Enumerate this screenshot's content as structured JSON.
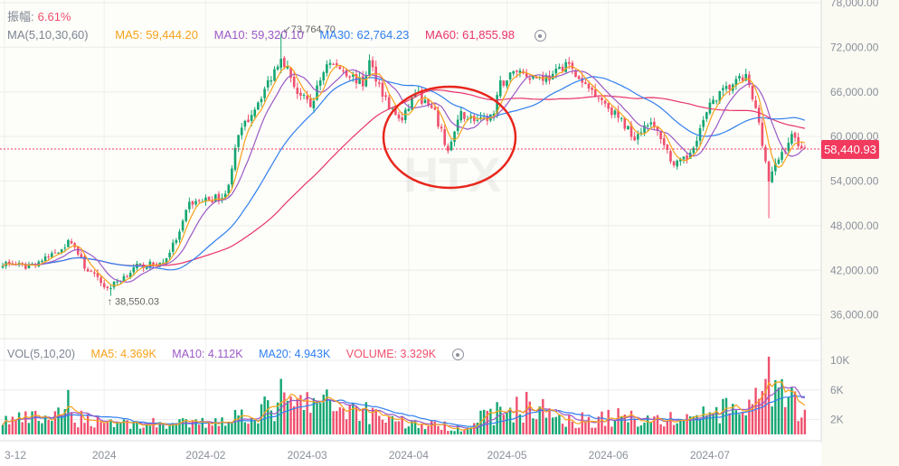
{
  "header": {
    "amplitude_label": "振幅:",
    "amplitude_value": "6.61%",
    "ma_title": "MA(5,10,30,60)",
    "ma5": "MA5: 59,444.20",
    "ma10": "MA10: 59,320.10",
    "ma30": "MA30: 62,764.23",
    "ma60": "MA60: 61,855.98"
  },
  "volume_header": {
    "title": "VOL(5,10,20)",
    "ma5": "MA5: 4.369K",
    "ma10": "MA10: 4.112K",
    "ma20": "MA20: 4.943K",
    "volume": "VOLUME: 3.329K"
  },
  "current_price": "58,440.93",
  "watermark": "HTX",
  "colors": {
    "up": "#13a672",
    "down": "#f0506e",
    "ma5": "#f7a21b",
    "ma10": "#9b59c6",
    "ma30": "#2f7ff0",
    "ma60": "#e8336a",
    "price_tag": "#f23a5e",
    "annotation": "#e8261c"
  },
  "chart_data": {
    "type": "candlestick",
    "title": "",
    "candle_count": 246,
    "y_ticks": [
      "78,000.00",
      "72,000.00",
      "66,000.00",
      "60,000.00",
      "54,000.00",
      "48,000.00",
      "42,000.00",
      "36,000.00"
    ],
    "y_tick_values": [
      78000,
      72000,
      66000,
      60000,
      54000,
      48000,
      42000,
      36000
    ],
    "ylim": [
      34000,
      78400
    ],
    "volume_ticks": [
      "10K",
      "6K",
      "2K"
    ],
    "volume_tick_values": [
      10,
      6,
      2
    ],
    "x_ticks": [
      {
        "label": "3-12",
        "index": 0
      },
      {
        "label": "2024",
        "index": 31
      },
      {
        "label": "2024-02",
        "index": 62
      },
      {
        "label": "2024-03",
        "index": 93
      },
      {
        "label": "2024-04",
        "index": 124
      },
      {
        "label": "2024-05",
        "index": 154
      },
      {
        "label": "2024-06",
        "index": 185
      },
      {
        "label": "2024-07",
        "index": 216
      }
    ],
    "high_label": {
      "text": "73,764.70",
      "index": 85,
      "value": 73764.7
    },
    "low_label": {
      "text": "38,550.03",
      "index": 33,
      "value": 38550.03
    },
    "close_anchors": [
      [
        0,
        43000
      ],
      [
        7,
        42500
      ],
      [
        13,
        43500
      ],
      [
        21,
        46000
      ],
      [
        25,
        42500
      ],
      [
        32,
        39500
      ],
      [
        41,
        42500
      ],
      [
        49,
        43000
      ],
      [
        54,
        47000
      ],
      [
        57,
        51000
      ],
      [
        68,
        52000
      ],
      [
        72,
        60000
      ],
      [
        77,
        64000
      ],
      [
        82,
        68000
      ],
      [
        85,
        71000
      ],
      [
        90,
        66000
      ],
      [
        94,
        64000
      ],
      [
        99,
        70000
      ],
      [
        104,
        69000
      ],
      [
        110,
        67000
      ],
      [
        112,
        70000
      ],
      [
        118,
        64000
      ],
      [
        122,
        62000
      ],
      [
        126,
        66000
      ],
      [
        132,
        63000
      ],
      [
        136,
        58000
      ],
      [
        140,
        63000
      ],
      [
        146,
        62000
      ],
      [
        150,
        63000
      ],
      [
        152,
        67000
      ],
      [
        157,
        69000
      ],
      [
        162,
        68000
      ],
      [
        168,
        68000
      ],
      [
        172,
        70000
      ],
      [
        177,
        67000
      ],
      [
        181,
        66000
      ],
      [
        187,
        63000
      ],
      [
        193,
        60000
      ],
      [
        197,
        62000
      ],
      [
        201,
        60000
      ],
      [
        205,
        56000
      ],
      [
        209,
        57000
      ],
      [
        213,
        61000
      ],
      [
        217,
        65000
      ],
      [
        223,
        67000
      ],
      [
        227,
        68000
      ],
      [
        231,
        62000
      ],
      [
        234,
        54000
      ],
      [
        237,
        57000
      ],
      [
        241,
        60000
      ],
      [
        245,
        58440.93
      ]
    ],
    "volume_anchors_k": [
      [
        0,
        2
      ],
      [
        20,
        2.5
      ],
      [
        40,
        1.5
      ],
      [
        60,
        1.5
      ],
      [
        85,
        4
      ],
      [
        95,
        4.5
      ],
      [
        110,
        3.5
      ],
      [
        125,
        1.5
      ],
      [
        140,
        1
      ],
      [
        150,
        3
      ],
      [
        160,
        4
      ],
      [
        175,
        2
      ],
      [
        190,
        2.5
      ],
      [
        205,
        2
      ],
      [
        215,
        3
      ],
      [
        225,
        3.5
      ],
      [
        235,
        5.5
      ],
      [
        245,
        4
      ]
    ],
    "volume_spikes_k": [
      [
        20,
        6
      ],
      [
        85,
        7.5
      ],
      [
        234,
        10.5
      ],
      [
        245,
        3.329
      ]
    ],
    "series": [
      "MA5",
      "MA10",
      "MA30",
      "MA60"
    ]
  }
}
